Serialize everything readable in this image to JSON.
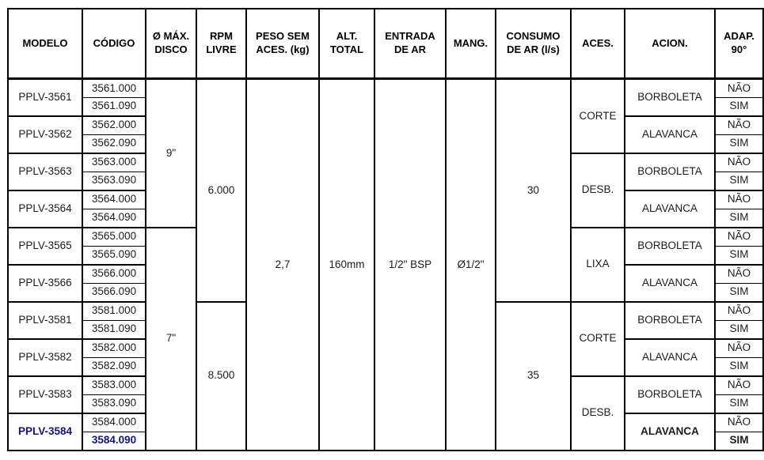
{
  "colors": {
    "navy_highlight": "#141478",
    "body_text": "#1c1c1c",
    "border": "#000000",
    "background": "#ffffff"
  },
  "table": {
    "row_count": 20,
    "headers": [
      {
        "id": "modelo",
        "label": "MODELO"
      },
      {
        "id": "codigo",
        "label": "CÓDIGO"
      },
      {
        "id": "disco",
        "label": "Ø MÁX.\nDISCO"
      },
      {
        "id": "rpm",
        "label": "RPM\nLIVRE"
      },
      {
        "id": "peso",
        "label": "PESO SEM\nACES. (kg)"
      },
      {
        "id": "alt",
        "label": "ALT.\nTOTAL"
      },
      {
        "id": "entrada",
        "label": "ENTRADA\nDE AR"
      },
      {
        "id": "mang",
        "label": "MANG."
      },
      {
        "id": "consumo",
        "label": "CONSUMO\nDE AR (l/s)"
      },
      {
        "id": "aces",
        "label": "ACES."
      },
      {
        "id": "acion",
        "label": "ACION."
      },
      {
        "id": "adap",
        "label": "ADAP.\n90°"
      }
    ],
    "columns": [
      {
        "id": "modelo",
        "cells": [
          {
            "text": "PPLV-3561",
            "span": 2
          },
          {
            "text": "PPLV-3562",
            "span": 2
          },
          {
            "text": "PPLV-3563",
            "span": 2
          },
          {
            "text": "PPLV-3564",
            "span": 2
          },
          {
            "text": "PPLV-3565",
            "span": 2
          },
          {
            "text": "PPLV-3566",
            "span": 2
          },
          {
            "text": "PPLV-3581",
            "span": 2
          },
          {
            "text": "PPLV-3582",
            "span": 2
          },
          {
            "text": "PPLV-3583",
            "span": 2
          },
          {
            "text": "PPLV-3584",
            "span": 2,
            "bold": true,
            "navy": true
          }
        ]
      },
      {
        "id": "codigo",
        "cells": [
          {
            "text": "3561.000",
            "span": 1
          },
          {
            "text": "3561.090",
            "span": 1
          },
          {
            "text": "3562.000",
            "span": 1
          },
          {
            "text": "3562.090",
            "span": 1
          },
          {
            "text": "3563.000",
            "span": 1
          },
          {
            "text": "3563.090",
            "span": 1
          },
          {
            "text": "3564.000",
            "span": 1
          },
          {
            "text": "3564.090",
            "span": 1
          },
          {
            "text": "3565.000",
            "span": 1
          },
          {
            "text": "3565.090",
            "span": 1
          },
          {
            "text": "3566.000",
            "span": 1
          },
          {
            "text": "3566.090",
            "span": 1
          },
          {
            "text": "3581.000",
            "span": 1
          },
          {
            "text": "3581.090",
            "span": 1
          },
          {
            "text": "3582.000",
            "span": 1
          },
          {
            "text": "3582.090",
            "span": 1
          },
          {
            "text": "3583.000",
            "span": 1
          },
          {
            "text": "3583.090",
            "span": 1
          },
          {
            "text": "3584.000",
            "span": 1
          },
          {
            "text": "3584.090",
            "span": 1,
            "bold": true,
            "navy": true
          }
        ]
      },
      {
        "id": "disco",
        "cells": [
          {
            "text": "9\"",
            "span": 8
          },
          {
            "text": "7\"",
            "span": 12
          }
        ]
      },
      {
        "id": "rpm",
        "cells": [
          {
            "text": "6.000",
            "span": 12
          },
          {
            "text": "8.500",
            "span": 8
          }
        ]
      },
      {
        "id": "peso",
        "cells": [
          {
            "text": "2,7",
            "span": 20
          }
        ]
      },
      {
        "id": "alt",
        "cells": [
          {
            "text": "160mm",
            "span": 20
          }
        ]
      },
      {
        "id": "entrada",
        "cells": [
          {
            "text": "1/2\" BSP",
            "span": 20
          }
        ]
      },
      {
        "id": "mang",
        "cells": [
          {
            "text": "Ø1/2\"",
            "span": 20
          }
        ]
      },
      {
        "id": "consumo",
        "cells": [
          {
            "text": "30",
            "span": 12
          },
          {
            "text": "35",
            "span": 8
          }
        ]
      },
      {
        "id": "aces",
        "cells": [
          {
            "text": "CORTE",
            "span": 4
          },
          {
            "text": "DESB.",
            "span": 4
          },
          {
            "text": "LIXA",
            "span": 4
          },
          {
            "text": "CORTE",
            "span": 4
          },
          {
            "text": "DESB.",
            "span": 4
          }
        ]
      },
      {
        "id": "acion",
        "cells": [
          {
            "text": "BORBOLETA",
            "span": 2
          },
          {
            "text": "ALAVANCA",
            "span": 2
          },
          {
            "text": "BORBOLETA",
            "span": 2
          },
          {
            "text": "ALAVANCA",
            "span": 2
          },
          {
            "text": "BORBOLETA",
            "span": 2
          },
          {
            "text": "ALAVANCA",
            "span": 2
          },
          {
            "text": "BORBOLETA",
            "span": 2
          },
          {
            "text": "ALAVANCA",
            "span": 2
          },
          {
            "text": "BORBOLETA",
            "span": 2
          },
          {
            "text": "ALAVANCA",
            "span": 2,
            "bold": true
          }
        ]
      },
      {
        "id": "adap",
        "cells": [
          {
            "text": "NÃO",
            "span": 1
          },
          {
            "text": "SIM",
            "span": 1
          },
          {
            "text": "NÃO",
            "span": 1
          },
          {
            "text": "SIM",
            "span": 1
          },
          {
            "text": "NÃO",
            "span": 1
          },
          {
            "text": "SIM",
            "span": 1
          },
          {
            "text": "NÃO",
            "span": 1
          },
          {
            "text": "SIM",
            "span": 1
          },
          {
            "text": "NÃO",
            "span": 1
          },
          {
            "text": "SIM",
            "span": 1
          },
          {
            "text": "NÃO",
            "span": 1
          },
          {
            "text": "SIM",
            "span": 1
          },
          {
            "text": "NÃO",
            "span": 1
          },
          {
            "text": "SIM",
            "span": 1
          },
          {
            "text": "NÃO",
            "span": 1
          },
          {
            "text": "SIM",
            "span": 1
          },
          {
            "text": "NÃO",
            "span": 1
          },
          {
            "text": "SIM",
            "span": 1
          },
          {
            "text": "NÃO",
            "span": 1
          },
          {
            "text": "SIM",
            "span": 1,
            "bold": true
          }
        ]
      }
    ]
  }
}
